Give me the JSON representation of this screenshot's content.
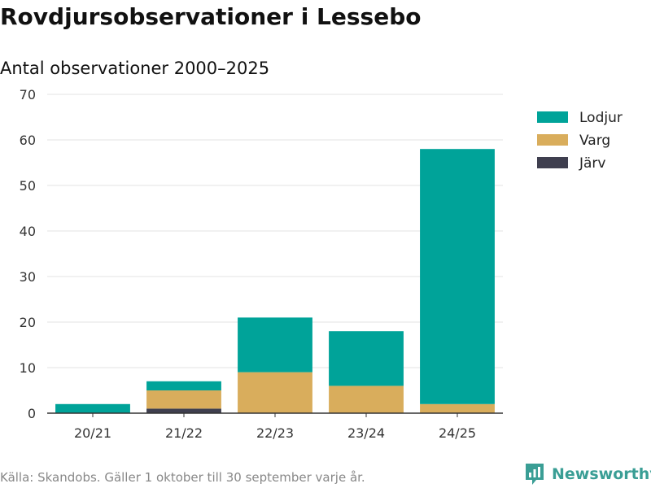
{
  "header": {
    "title": "Rovdjursobservationer i Lessebo",
    "subtitle": "Antal observationer 2000–2025"
  },
  "footer": {
    "source": "Källa: Skandobs. Gäller 1 oktober till 30 september varje år.",
    "brand": "Newsworthy",
    "brand_icon": "newsworthy-logo-icon"
  },
  "colors": {
    "Lodjur": "#00a399",
    "Varg": "#d9ad5c",
    "Järv": "#3f3f4f",
    "grid": "#e3e3e3",
    "axis": "#333333",
    "brand": "#3a9e95"
  },
  "chart_data": {
    "type": "bar",
    "stacked": true,
    "categories": [
      "20/21",
      "21/22",
      "22/23",
      "23/24",
      "24/25"
    ],
    "series": [
      {
        "name": "Järv",
        "values": [
          0,
          1,
          0,
          0,
          0
        ]
      },
      {
        "name": "Varg",
        "values": [
          0,
          4,
          9,
          6,
          2
        ]
      },
      {
        "name": "Lodjur",
        "values": [
          2,
          2,
          12,
          12,
          56
        ]
      }
    ],
    "legend_order": [
      "Lodjur",
      "Varg",
      "Järv"
    ],
    "legend_position": "top-right",
    "title": "Rovdjursobservationer i Lessebo",
    "subtitle": "Antal observationer 2000–2025",
    "xlabel": "",
    "ylabel": "",
    "ylim": [
      0,
      70
    ],
    "yticks": [
      0,
      10,
      20,
      30,
      40,
      50,
      60,
      70
    ],
    "grid": true
  }
}
